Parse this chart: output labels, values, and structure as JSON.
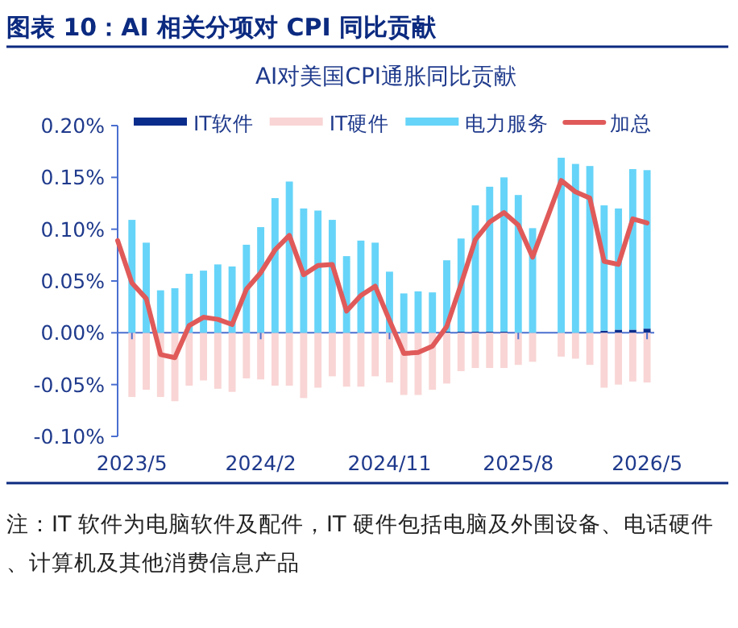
{
  "chart_data": {
    "type": "bar",
    "title": "图表 10：AI 相关分项对 CPI 同比贡献",
    "subtitle": "AI对美国CPI通胀同比贡献",
    "categories": [
      null,
      "2023/5",
      null,
      null,
      null,
      null,
      null,
      null,
      null,
      null,
      "2024/2",
      null,
      null,
      null,
      null,
      null,
      null,
      null,
      null,
      "2024/11",
      null,
      null,
      null,
      null,
      null,
      null,
      null,
      null,
      "2025/8",
      null,
      null,
      null,
      null,
      null,
      null,
      null,
      null,
      "2026/5"
    ],
    "stacked": true,
    "series": [
      {
        "name": "IT软件",
        "color": "#0a2d8c",
        "values": [
          null,
          0,
          0,
          0,
          0,
          0,
          0,
          0,
          0,
          0,
          0,
          0,
          0,
          0,
          0,
          0,
          0,
          0,
          0,
          0,
          0,
          0,
          0,
          0.001,
          0.001,
          0.001,
          0.001,
          0.001,
          0,
          0,
          null,
          0,
          0,
          0,
          0.002,
          0.003,
          0.003,
          0.004
        ]
      },
      {
        "name": "IT硬件",
        "color": "#f9d5d5",
        "values": [
          null,
          -0.062,
          -0.055,
          -0.062,
          -0.066,
          -0.051,
          -0.046,
          -0.054,
          -0.057,
          -0.044,
          -0.045,
          -0.051,
          -0.051,
          -0.063,
          -0.053,
          -0.042,
          -0.052,
          -0.052,
          -0.042,
          -0.048,
          -0.06,
          -0.06,
          -0.055,
          -0.049,
          -0.037,
          -0.034,
          -0.034,
          -0.034,
          -0.031,
          -0.028,
          null,
          -0.023,
          -0.025,
          -0.031,
          -0.053,
          -0.05,
          -0.047,
          -0.048
        ]
      },
      {
        "name": "电力服务",
        "color": "#66d4f8",
        "values": [
          null,
          0.109,
          0.087,
          0.041,
          0.043,
          0.057,
          0.06,
          0.066,
          0.064,
          0.085,
          0.102,
          0.13,
          0.146,
          0.12,
          0.118,
          0.109,
          0.074,
          0.089,
          0.087,
          0.059,
          0.038,
          0.04,
          0.039,
          0.069,
          0.09,
          0.122,
          0.14,
          0.149,
          0.133,
          0.101,
          null,
          0.169,
          0.163,
          0.161,
          0.121,
          0.117,
          0.155,
          0.153
        ]
      },
      {
        "name": "加总",
        "type": "line",
        "color": "#e05a5a",
        "values": [
          0.089,
          0.048,
          0.033,
          -0.021,
          -0.024,
          0.007,
          0.015,
          0.013,
          0.008,
          0.042,
          0.058,
          0.08,
          0.094,
          0.056,
          0.065,
          0.066,
          0.021,
          0.036,
          0.045,
          0.012,
          -0.02,
          -0.019,
          -0.013,
          0.006,
          0.047,
          0.09,
          0.107,
          0.116,
          0.104,
          0.073,
          null,
          0.147,
          0.136,
          0.13,
          0.069,
          0.066,
          0.11,
          0.106
        ]
      }
    ],
    "ylim": [
      -0.1,
      0.2
    ],
    "yticks": [
      {
        "value": -0.1,
        "label": "-0.10%"
      },
      {
        "value": -0.05,
        "label": "-0.05%"
      },
      {
        "value": 0,
        "label": "0.00%"
      },
      {
        "value": 0.05,
        "label": "0.05%"
      },
      {
        "value": 0.1,
        "label": "0.10%"
      },
      {
        "value": 0.15,
        "label": "0.15%"
      },
      {
        "value": 0.2,
        "label": "0.20%"
      }
    ],
    "legend": "top",
    "ref_lines": [
      {
        "axis": "y",
        "value": 0,
        "color": "#4a6fd0"
      }
    ],
    "annotations": [
      "注：IT 软件为电脑软件及配件，IT 硬件包括电脑及外围设备、电话硬件、计算机及其他消费信息产品"
    ]
  }
}
